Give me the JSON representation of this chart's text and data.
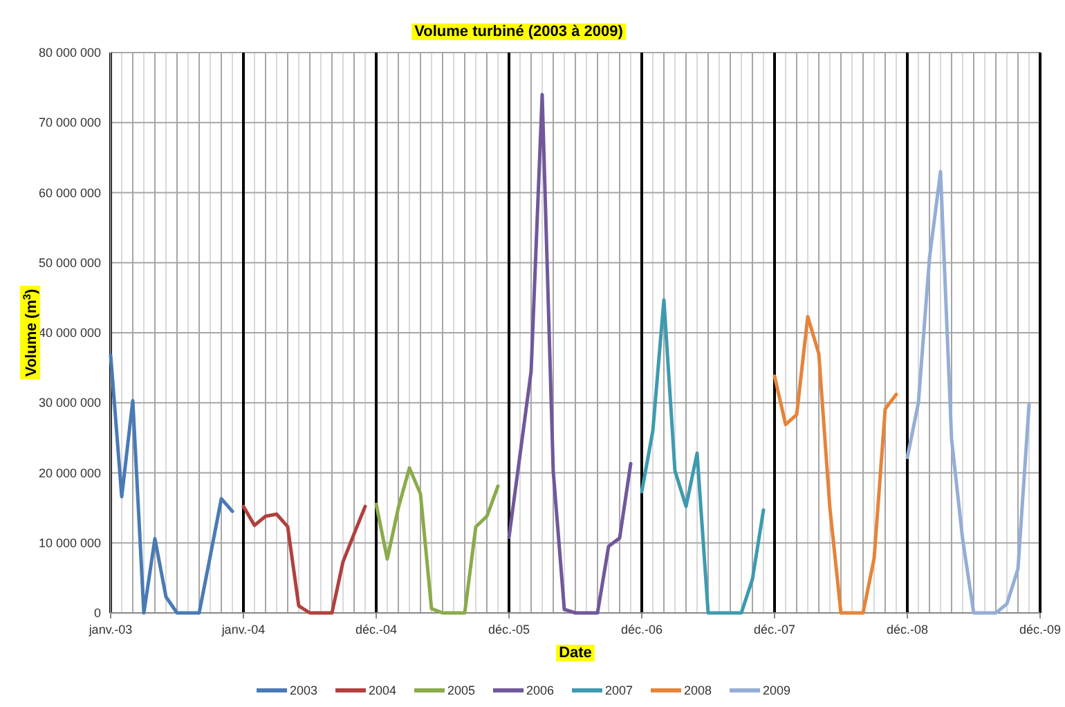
{
  "chart_data": {
    "type": "line",
    "title": "Volume turbiné (2003 à 2009)",
    "xlabel": "Date",
    "ylabel": "Volume (m$^{3}$)",
    "xlim": [
      "2003-01",
      "2010-01"
    ],
    "xticks": [
      {
        "value": "2003-01",
        "label": "janv.-03"
      },
      {
        "value": "2004-01",
        "label": "janv.-04"
      },
      {
        "value": "2005-01",
        "label": "déc.-04"
      },
      {
        "value": "2006-01",
        "label": "déc.-05"
      },
      {
        "value": "2007-01",
        "label": "déc.-06"
      },
      {
        "value": "2008-01",
        "label": "déc.-07"
      },
      {
        "value": "2009-01",
        "label": "déc.-08"
      },
      {
        "value": "2010-01",
        "label": "déc.-09"
      }
    ],
    "ylim": [
      0,
      80000000
    ],
    "yticks": [
      {
        "value": 0,
        "label": "0"
      },
      {
        "value": 10000000,
        "label": "10 000 000"
      },
      {
        "value": 20000000,
        "label": "20 000 000"
      },
      {
        "value": 30000000,
        "label": "30 000 000"
      },
      {
        "value": 40000000,
        "label": "40 000 000"
      },
      {
        "value": 50000000,
        "label": "50 000 000"
      },
      {
        "value": 60000000,
        "label": "60 000 000"
      },
      {
        "value": 70000000,
        "label": "70 000 000"
      },
      {
        "value": 80000000,
        "label": "80 000 000"
      }
    ],
    "grid": true,
    "legend": "bottom",
    "line_style": "solid",
    "marker": "none",
    "series": [
      {
        "name": "2003",
        "color": "#4a7ab5",
        "x": [
          "2003-01",
          "2003-02",
          "2003-03",
          "2003-04",
          "2003-05",
          "2003-06",
          "2003-07",
          "2003-08",
          "2003-09",
          "2003-10",
          "2003-11",
          "2003-12"
        ],
        "values": [
          36800000,
          16600000,
          30300000,
          0,
          10600000,
          2300000,
          0,
          0,
          0,
          8100000,
          16300000,
          14500000
        ]
      },
      {
        "name": "2004",
        "color": "#b0413e",
        "x": [
          "2004-01",
          "2004-02",
          "2004-03",
          "2004-04",
          "2004-05",
          "2004-06",
          "2004-07",
          "2004-08",
          "2004-09",
          "2004-10",
          "2004-11",
          "2004-12"
        ],
        "values": [
          15200000,
          12500000,
          13800000,
          14100000,
          12300000,
          1000000,
          0,
          0,
          0,
          7300000,
          11300000,
          15200000
        ]
      },
      {
        "name": "2005",
        "color": "#8aab4a",
        "x": [
          "2005-01",
          "2005-02",
          "2005-03",
          "2005-04",
          "2005-05",
          "2005-06",
          "2005-07",
          "2005-08",
          "2005-09",
          "2005-10",
          "2005-11",
          "2005-12"
        ],
        "values": [
          15500000,
          7700000,
          15000000,
          20700000,
          17000000,
          600000,
          0,
          0,
          0,
          12300000,
          13800000,
          18100000
        ]
      },
      {
        "name": "2006",
        "color": "#70589a",
        "x": [
          "2006-01",
          "2006-02",
          "2006-03",
          "2006-04",
          "2006-05",
          "2006-06",
          "2006-07",
          "2006-08",
          "2006-09",
          "2006-10",
          "2006-11",
          "2006-12"
        ],
        "values": [
          10800000,
          22600000,
          34500000,
          74000000,
          20200000,
          500000,
          0,
          0,
          0,
          9500000,
          10700000,
          21300000
        ]
      },
      {
        "name": "2007",
        "color": "#3f9ab0",
        "x": [
          "2007-01",
          "2007-02",
          "2007-03",
          "2007-04",
          "2007-05",
          "2007-06",
          "2007-07",
          "2007-08",
          "2007-09",
          "2007-10",
          "2007-11",
          "2007-12"
        ],
        "values": [
          17300000,
          26000000,
          44700000,
          20300000,
          15200000,
          22800000,
          0,
          0,
          0,
          0,
          4800000,
          14700000
        ]
      },
      {
        "name": "2008",
        "color": "#e5843a",
        "x": [
          "2008-01",
          "2008-02",
          "2008-03",
          "2008-04",
          "2008-05",
          "2008-06",
          "2008-07",
          "2008-08",
          "2008-09",
          "2008-10",
          "2008-11",
          "2008-12"
        ],
        "values": [
          33800000,
          26900000,
          28300000,
          42300000,
          37000000,
          15000000,
          0,
          0,
          0,
          7800000,
          29100000,
          31200000
        ]
      },
      {
        "name": "2009",
        "color": "#95aed6",
        "x": [
          "2009-01",
          "2009-02",
          "2009-03",
          "2009-04",
          "2009-05",
          "2009-06",
          "2009-07",
          "2009-08",
          "2009-09",
          "2009-10",
          "2009-11",
          "2009-12"
        ],
        "values": [
          22200000,
          30000000,
          50600000,
          63000000,
          24800000,
          10500000,
          0,
          0,
          0,
          1300000,
          6300000,
          29700000
        ]
      }
    ]
  }
}
